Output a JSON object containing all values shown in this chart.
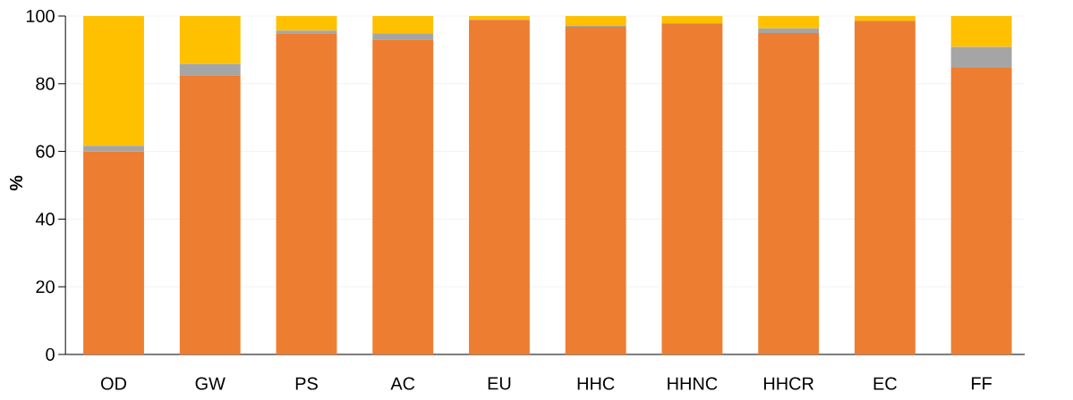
{
  "chart_data": {
    "type": "bar",
    "stacked": true,
    "ylabel": "%",
    "categories": [
      "OD",
      "GW",
      "PS",
      "AC",
      "EU",
      "HHC",
      "HHNC",
      "HHCR",
      "EC",
      "FF"
    ],
    "series": [
      {
        "color": "#ed7d31",
        "values": [
          60,
          82.5,
          94.9,
          93.1,
          98.9,
          96.8,
          97.6,
          95.0,
          98.6,
          84.7
        ]
      },
      {
        "color": "#a5a5a5",
        "values": [
          1.7,
          3.4,
          0.8,
          1.8,
          null,
          0.3,
          0.3,
          1.4,
          null,
          6.2
        ]
      },
      {
        "color": "#ffc000",
        "values": [
          38.3,
          14.1,
          4.3,
          5.1,
          1.1,
          2.9,
          2.1,
          3.6,
          1.4,
          9.1
        ]
      }
    ],
    "ylim": [
      0,
      100
    ],
    "yticks": [
      0,
      20,
      40,
      60,
      80,
      100
    ],
    "grid": "y"
  }
}
